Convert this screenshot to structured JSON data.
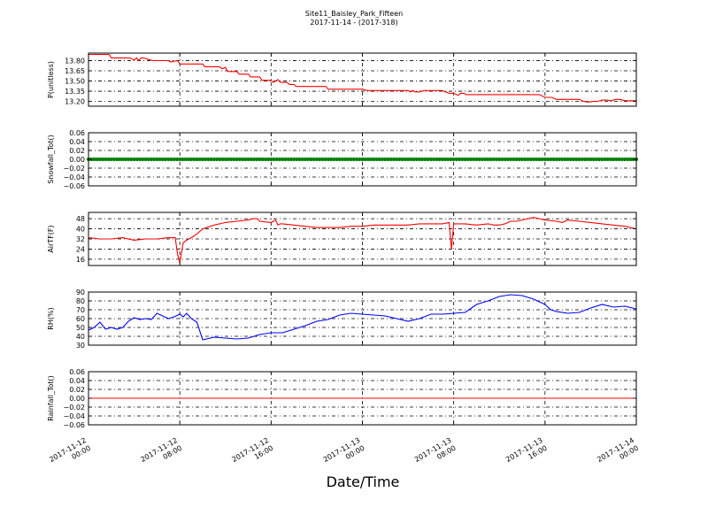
{
  "figure": {
    "title_line1": "Site11_Baisley_Park_Fifteen",
    "title_line2": "2017-11-14 - (2017-318)",
    "xlabel": "Date/Time"
  },
  "chart_data": [
    {
      "type": "line",
      "ylabel": "P(unitless)",
      "ylim": [
        13.13,
        13.91
      ],
      "yticks": [
        13.2,
        13.35,
        13.5,
        13.65,
        13.8
      ],
      "ytick_labels": [
        "13.20",
        "13.35",
        "13.50",
        "13.65",
        "13.80"
      ],
      "color": "#ff0000",
      "grid": true,
      "x_range_hours": [
        0,
        48
      ],
      "series": [
        {
          "x_hours": [
            0.0,
            1.8,
            2.0,
            3.6,
            4.0,
            4.2,
            4.4,
            4.6,
            4.8,
            5.4,
            5.6,
            6.0,
            7.0,
            7.2,
            7.8,
            8.0,
            10.0,
            10.2,
            11.5,
            11.7,
            12.0,
            12.2,
            13.0,
            13.2,
            14.0,
            14.2,
            15.0,
            15.2,
            16.0,
            16.2,
            16.6,
            16.8,
            17.4,
            17.6,
            18.0,
            18.2,
            20.0,
            20.8,
            21.0,
            24.0,
            24.4,
            25.0,
            26.0,
            27.0,
            28.0,
            28.2,
            28.4,
            28.6,
            29.0,
            29.4,
            30.0,
            31.0,
            31.6,
            32.0,
            32.4,
            32.6,
            32.9,
            33.1,
            34.0,
            36.0,
            38.0,
            39.5,
            40.0,
            40.6,
            41.0,
            42.0,
            43.0,
            43.4,
            43.8,
            44.2,
            44.6,
            45.0,
            45.4,
            45.8,
            46.2,
            46.6,
            47.0,
            47.5,
            48.0
          ],
          "values": [
            13.89,
            13.89,
            13.84,
            13.84,
            13.81,
            13.84,
            13.8,
            13.84,
            13.84,
            13.81,
            13.8,
            13.8,
            13.8,
            13.78,
            13.8,
            13.75,
            13.75,
            13.71,
            13.71,
            13.68,
            13.7,
            13.64,
            13.64,
            13.6,
            13.6,
            13.56,
            13.56,
            13.51,
            13.51,
            13.48,
            13.52,
            13.48,
            13.48,
            13.45,
            13.45,
            13.42,
            13.42,
            13.42,
            13.38,
            13.38,
            13.36,
            13.36,
            13.36,
            13.36,
            13.36,
            13.34,
            13.36,
            13.34,
            13.34,
            13.36,
            13.36,
            13.36,
            13.32,
            13.32,
            13.29,
            13.32,
            13.32,
            13.3,
            13.3,
            13.3,
            13.3,
            13.3,
            13.26,
            13.26,
            13.23,
            13.23,
            13.23,
            13.2,
            13.19,
            13.2,
            13.2,
            13.22,
            13.22,
            13.21,
            13.23,
            13.23,
            13.21,
            13.21,
            13.21
          ]
        }
      ]
    },
    {
      "type": "line",
      "ylabel": "Snowfall_Tot()",
      "ylim": [
        -0.06,
        0.06
      ],
      "yticks": [
        -0.06,
        -0.04,
        -0.02,
        0.0,
        0.02,
        0.04,
        0.06
      ],
      "ytick_labels": [
        "−0.06",
        "−0.04",
        "−0.02",
        "0.00",
        "0.02",
        "0.04",
        "0.06"
      ],
      "color": "#008000",
      "marker": "dot",
      "grid": true,
      "x_range_hours": [
        0,
        48
      ],
      "series": [
        {
          "x_hours": [
            0,
            48
          ],
          "values": [
            0.0,
            0.0
          ],
          "constant": true
        }
      ]
    },
    {
      "type": "line",
      "ylabel": "AirTF(F)",
      "ylim": [
        11,
        53
      ],
      "yticks": [
        16,
        24,
        32,
        40,
        48
      ],
      "ytick_labels": [
        "16",
        "24",
        "32",
        "40",
        "48"
      ],
      "color": "#ff0000",
      "grid": true,
      "x_range_hours": [
        0,
        48
      ],
      "series": [
        {
          "x_hours": [
            0.0,
            1.0,
            2.0,
            3.0,
            4.0,
            5.0,
            6.0,
            7.0,
            7.6,
            7.8,
            8.0,
            8.3,
            8.6,
            9.0,
            9.5,
            10.0,
            11.0,
            12.0,
            13.0,
            14.0,
            14.4,
            14.8,
            15.0,
            16.0,
            16.4,
            16.6,
            16.8,
            17.0,
            18.0,
            19.0,
            20.0,
            21.0,
            22.0,
            23.0,
            24.0,
            25.0,
            26.0,
            27.0,
            28.0,
            29.0,
            30.0,
            31.0,
            31.6,
            31.8,
            32.0,
            32.4,
            33.0,
            34.0,
            35.0,
            35.5,
            36.0,
            36.5,
            37.0,
            37.5,
            38.0,
            39.0,
            40.0,
            41.0,
            41.5,
            42.0,
            43.0,
            44.0,
            45.0,
            46.0,
            47.0,
            48.0
          ],
          "values": [
            33,
            32,
            32,
            33,
            31,
            32,
            32,
            33,
            33,
            20,
            13,
            29,
            31,
            33,
            36,
            40,
            43,
            45,
            46,
            47,
            48,
            48,
            46,
            45,
            47,
            43,
            44,
            44,
            43,
            42,
            41,
            41,
            41,
            42,
            42,
            43,
            43,
            43,
            43,
            44,
            44,
            44,
            45,
            24,
            44,
            44,
            44,
            43,
            44,
            43,
            43,
            44,
            46,
            46,
            47,
            49,
            47,
            46,
            45,
            47,
            46,
            45,
            44,
            43,
            42,
            40
          ]
        }
      ]
    },
    {
      "type": "line",
      "ylabel": "RH(%)",
      "ylim": [
        30,
        90
      ],
      "yticks": [
        30,
        40,
        50,
        60,
        70,
        80,
        90
      ],
      "ytick_labels": [
        "30",
        "40",
        "50",
        "60",
        "70",
        "80",
        "90"
      ],
      "color": "#0000ff",
      "grid": true,
      "x_range_hours": [
        0,
        48
      ],
      "series": [
        {
          "x_hours": [
            0.0,
            0.5,
            1.0,
            1.5,
            2.0,
            2.5,
            3.0,
            3.5,
            4.0,
            4.5,
            5.0,
            5.5,
            6.0,
            6.5,
            7.0,
            7.5,
            8.0,
            8.3,
            8.6,
            9.0,
            9.5,
            10.0,
            11.0,
            12.0,
            13.0,
            14.0,
            15.0,
            16.0,
            17.0,
            18.0,
            19.0,
            20.0,
            21.0,
            22.0,
            23.0,
            24.0,
            25.0,
            26.0,
            27.0,
            28.0,
            29.0,
            30.0,
            31.0,
            32.0,
            33.0,
            34.0,
            35.0,
            36.0,
            37.0,
            38.0,
            39.0,
            40.0,
            40.5,
            41.0,
            42.0,
            43.0,
            44.0,
            45.0,
            46.0,
            47.0,
            48.0
          ],
          "values": [
            47,
            50,
            56,
            48,
            50,
            48,
            50,
            57,
            61,
            59,
            60,
            59,
            66,
            63,
            60,
            62,
            65,
            62,
            66,
            60,
            56,
            36,
            39,
            38,
            37,
            38,
            42,
            44,
            44,
            48,
            52,
            57,
            59,
            64,
            66,
            65,
            64,
            63,
            60,
            57,
            60,
            65,
            65,
            66,
            67,
            76,
            80,
            85,
            87,
            86,
            82,
            76,
            70,
            68,
            66,
            67,
            72,
            76,
            73,
            74,
            71
          ]
        }
      ]
    },
    {
      "type": "line",
      "ylabel": "Rainfall_Tot()",
      "ylim": [
        -0.06,
        0.06
      ],
      "yticks": [
        -0.06,
        -0.04,
        -0.02,
        0.0,
        0.02,
        0.04,
        0.06
      ],
      "ytick_labels": [
        "−0.06",
        "−0.04",
        "−0.02",
        "0.00",
        "0.02",
        "0.04",
        "0.06"
      ],
      "color": "#ff0000",
      "grid": true,
      "x_range_hours": [
        0,
        48
      ],
      "series": [
        {
          "x_hours": [
            0,
            48
          ],
          "values": [
            0.0,
            0.0
          ]
        }
      ]
    }
  ],
  "xaxis": {
    "ticks_hours": [
      0,
      8,
      16,
      24,
      32,
      40,
      48
    ],
    "tick_labels": [
      [
        "2017-11-12",
        "00:00"
      ],
      [
        "2017-11-12",
        "08:00"
      ],
      [
        "2017-11-12",
        "16:00"
      ],
      [
        "2017-11-13",
        "00:00"
      ],
      [
        "2017-11-13",
        "08:00"
      ],
      [
        "2017-11-13",
        "16:00"
      ],
      [
        "2017-11-14",
        "00:00"
      ]
    ]
  }
}
